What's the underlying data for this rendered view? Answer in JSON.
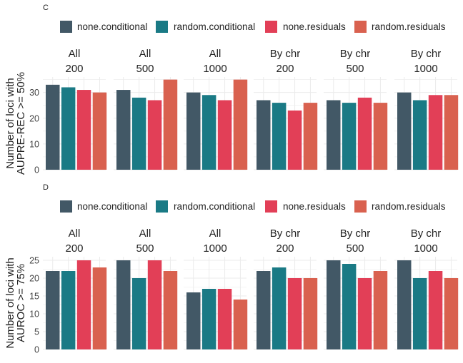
{
  "series_names": [
    "none.conditional",
    "random.conditional",
    "none.residuals",
    "random.residuals"
  ],
  "colors": {
    "none.conditional": "#425866",
    "random.conditional": "#1a7a85",
    "none.residuals": "#e23f57",
    "random.residuals": "#d9614f",
    "panel_bg": "#ffffff",
    "grid": "#ebebeb",
    "text": "#222222"
  },
  "chart_data": [
    {
      "type": "bar",
      "panel_label": "C",
      "ylabel": "Number of loci with\nAUPRE-REC >= 50%",
      "ylim": [
        0,
        36
      ],
      "yticks": [
        0,
        10,
        20,
        30
      ],
      "legend_position": "top",
      "facets": [
        {
          "strip": [
            "All",
            "200"
          ],
          "values": [
            33,
            32,
            31,
            30
          ]
        },
        {
          "strip": [
            "All",
            "500"
          ],
          "values": [
            31,
            28,
            27,
            35
          ]
        },
        {
          "strip": [
            "All",
            "1000"
          ],
          "values": [
            30,
            29,
            27,
            35
          ]
        },
        {
          "strip": [
            "By chr",
            "200"
          ],
          "values": [
            27,
            26,
            23,
            26
          ]
        },
        {
          "strip": [
            "By chr",
            "500"
          ],
          "values": [
            27,
            26,
            28,
            26
          ]
        },
        {
          "strip": [
            "By chr",
            "1000"
          ],
          "values": [
            30,
            27,
            29,
            29
          ]
        }
      ]
    },
    {
      "type": "bar",
      "panel_label": "D",
      "ylabel": "Number of loci with\nAUROC >= 75%",
      "ylim": [
        0,
        26
      ],
      "yticks": [
        0,
        5,
        10,
        15,
        20,
        25
      ],
      "legend_position": "top",
      "facets": [
        {
          "strip": [
            "All",
            "200"
          ],
          "values": [
            22,
            22,
            25,
            23
          ]
        },
        {
          "strip": [
            "All",
            "500"
          ],
          "values": [
            25,
            20,
            25,
            22
          ]
        },
        {
          "strip": [
            "All",
            "1000"
          ],
          "values": [
            16,
            17,
            17,
            14
          ]
        },
        {
          "strip": [
            "By chr",
            "200"
          ],
          "values": [
            22,
            23,
            20,
            20
          ]
        },
        {
          "strip": [
            "By chr",
            "500"
          ],
          "values": [
            25,
            24,
            20,
            22
          ]
        },
        {
          "strip": [
            "By chr",
            "1000"
          ],
          "values": [
            25,
            20,
            22,
            20
          ]
        }
      ]
    }
  ]
}
